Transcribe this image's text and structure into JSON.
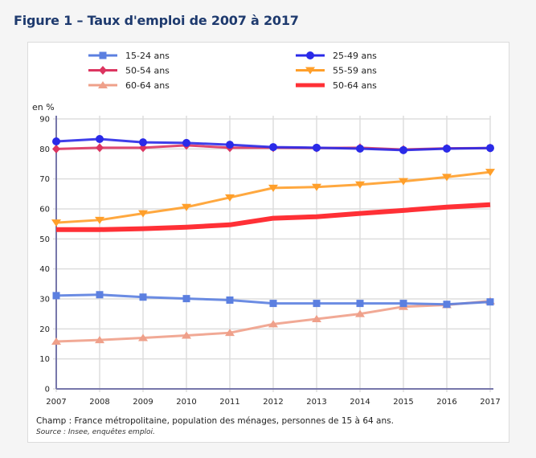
{
  "figure": {
    "title": "Figure 1 – Taux d'emploi de 2007 à 2017",
    "note": "Champ : France métropolitaine, population des ménages, personnes de 15 à 64 ans.",
    "source": "Source : Insee, enquêtes emploi."
  },
  "chart_data": {
    "type": "line",
    "title": "Taux d'emploi de 2007 à 2017",
    "xlabel": "",
    "ylabel": "en %",
    "x": [
      "2007",
      "2008",
      "2009",
      "2010",
      "2011",
      "2012",
      "2013",
      "2014",
      "2015",
      "2016",
      "2017"
    ],
    "ylim": [
      0,
      90
    ],
    "yticks": [
      0,
      10,
      20,
      30,
      40,
      50,
      60,
      70,
      80,
      90
    ],
    "grid": true,
    "legend_position": "top",
    "series": [
      {
        "name": "15-24 ans",
        "color": "#5b7fe0",
        "marker": "square",
        "values": [
          31.1,
          31.4,
          30.6,
          30.1,
          29.6,
          28.5,
          28.5,
          28.5,
          28.5,
          28.2,
          29.0
        ]
      },
      {
        "name": "25-49 ans",
        "color": "#2a2ae8",
        "marker": "circle",
        "values": [
          82.5,
          83.3,
          82.2,
          82.0,
          81.4,
          80.6,
          80.4,
          80.1,
          79.6,
          80.1,
          80.3
        ]
      },
      {
        "name": "50-54 ans",
        "color": "#dc3560",
        "marker": "diamond",
        "values": [
          80.0,
          80.4,
          80.4,
          81.2,
          80.4,
          80.4,
          80.3,
          80.4,
          79.8,
          80.2,
          80.3
        ]
      },
      {
        "name": "55-59 ans",
        "color": "#ff9f2a",
        "marker": "triangle-down",
        "values": [
          55.4,
          56.3,
          58.5,
          60.6,
          63.8,
          67.0,
          67.3,
          68.1,
          69.2,
          70.6,
          72.3
        ]
      },
      {
        "name": "60-64 ans",
        "color": "#efa08a",
        "marker": "triangle-up",
        "values": [
          15.8,
          16.3,
          17.0,
          17.8,
          18.7,
          21.6,
          23.3,
          25.0,
          27.4,
          28.0,
          29.3
        ]
      },
      {
        "name": "50-64 ans",
        "color": "#ff3036",
        "marker": "none",
        "thick": true,
        "values": [
          53.1,
          53.1,
          53.4,
          53.9,
          54.7,
          56.9,
          57.4,
          58.5,
          59.5,
          60.6,
          61.4
        ]
      }
    ]
  }
}
